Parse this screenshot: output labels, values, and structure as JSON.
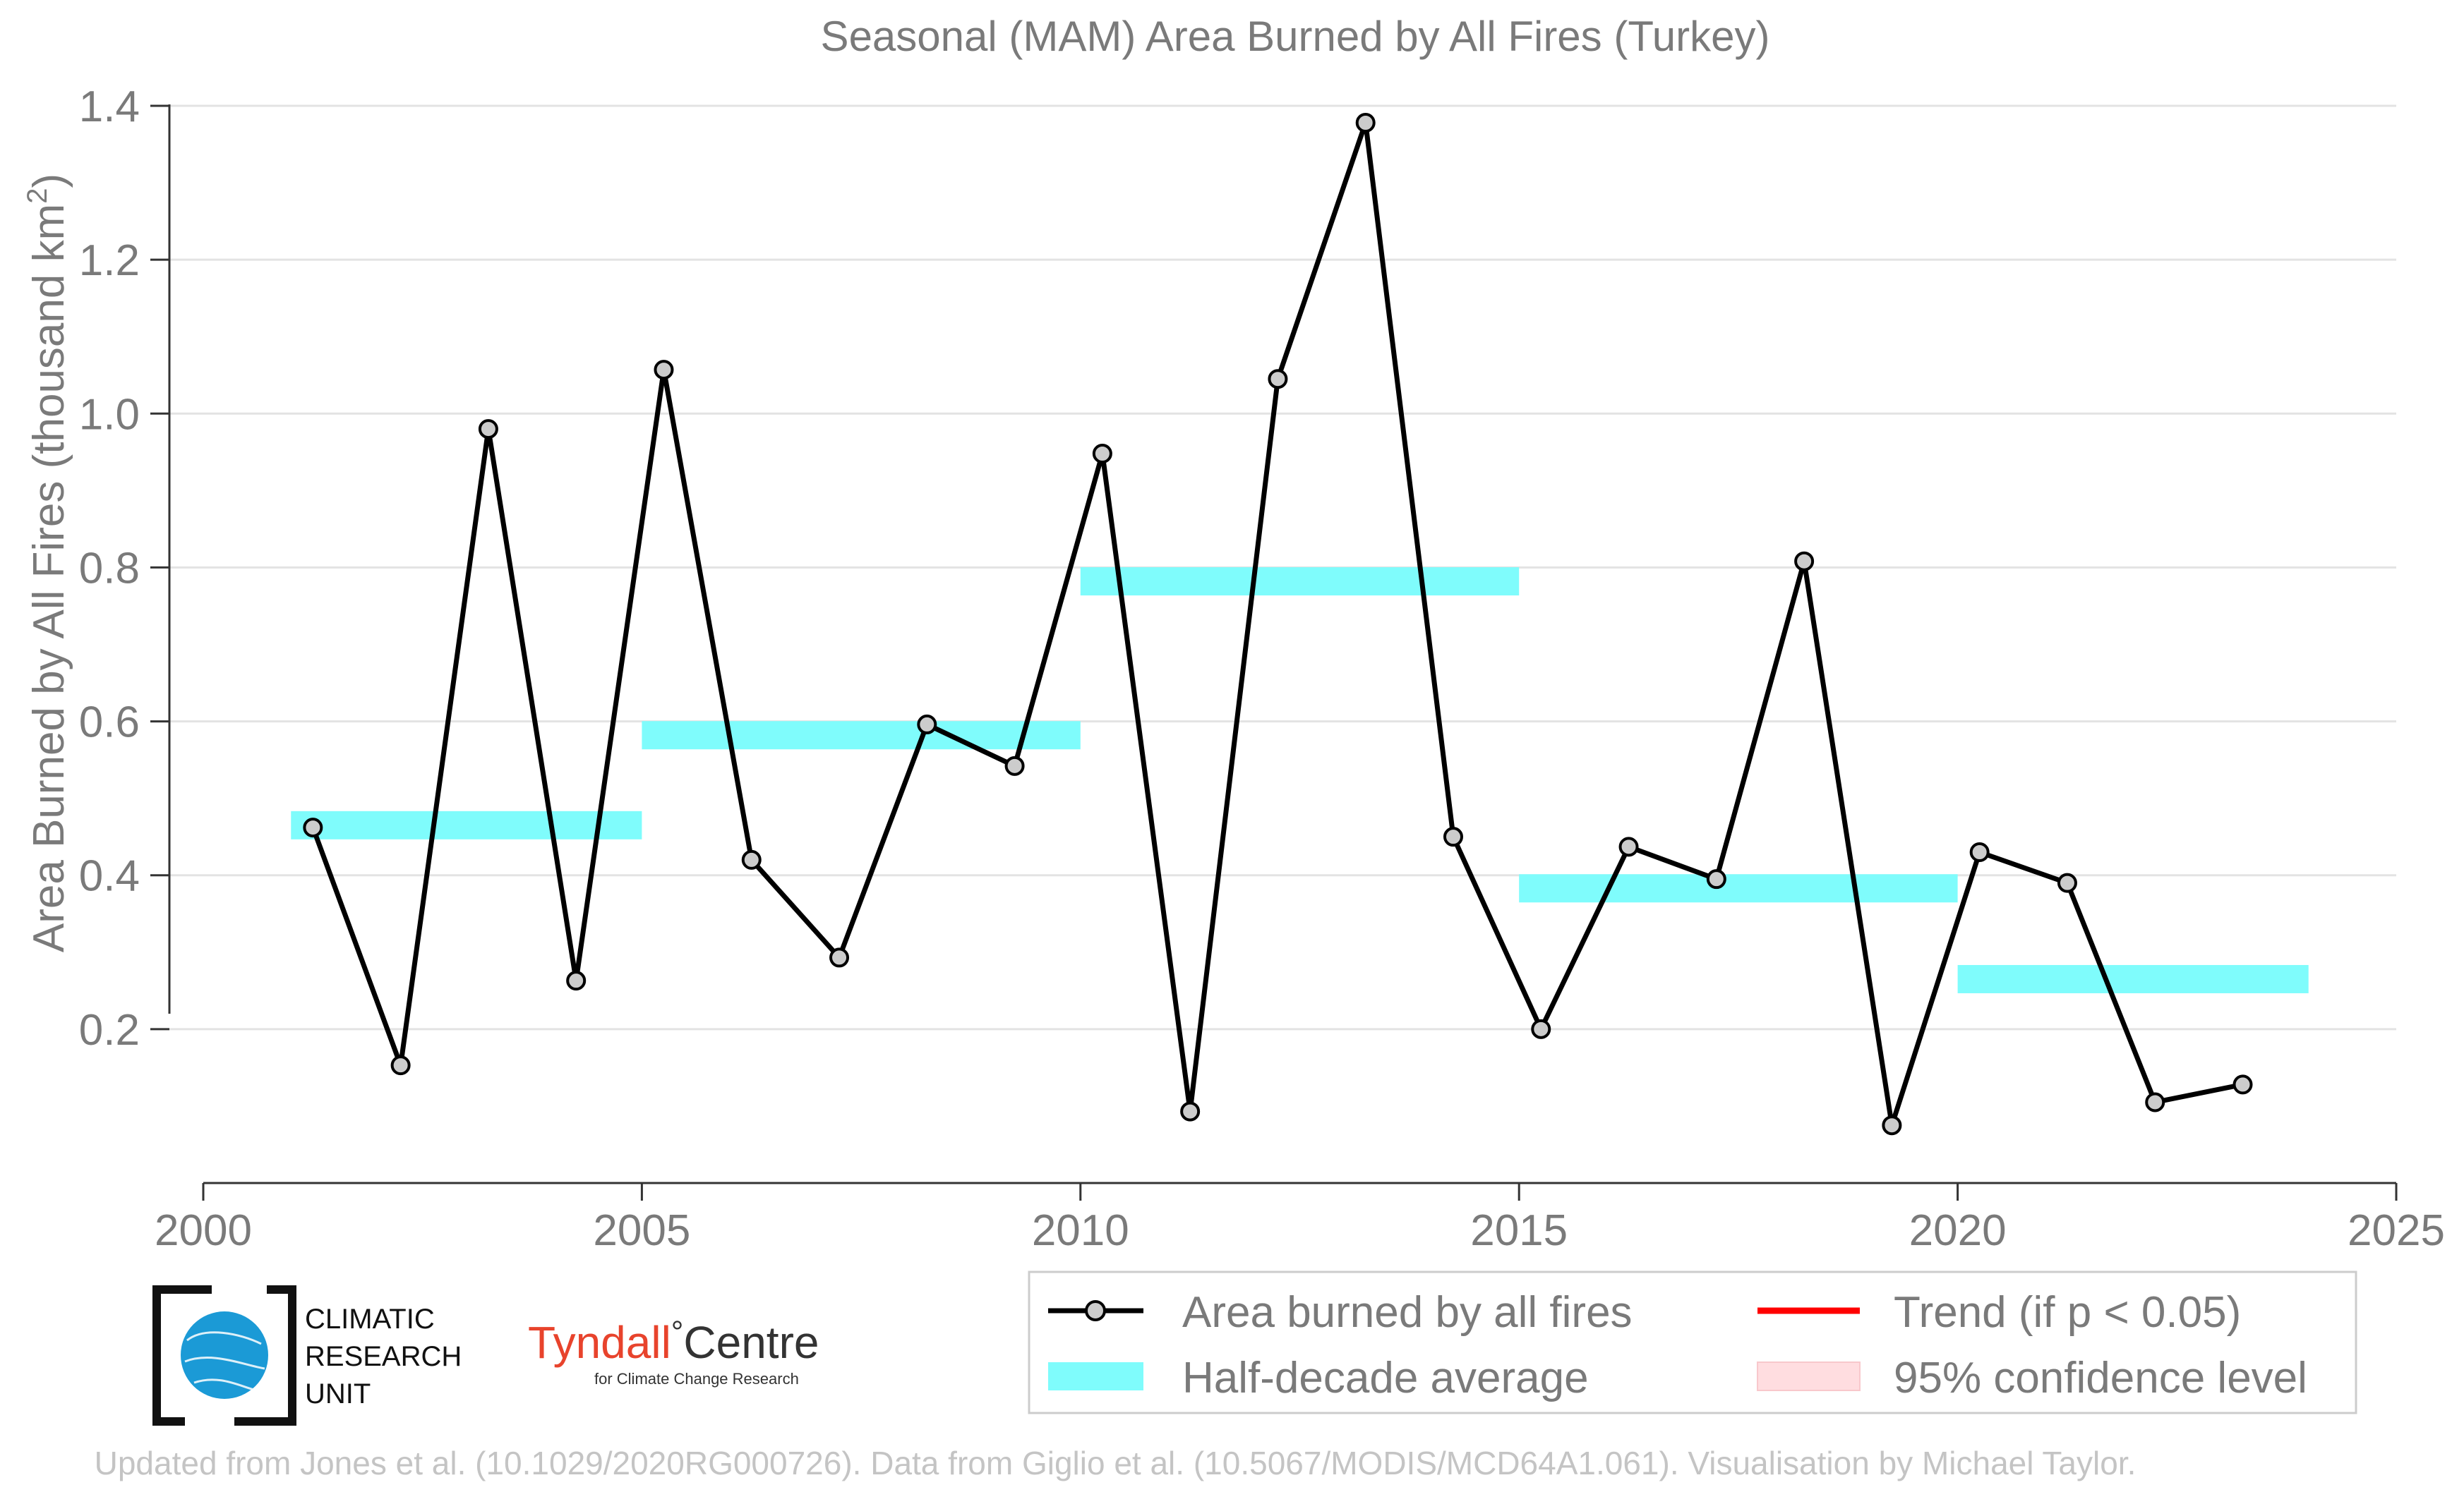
{
  "chart_data": {
    "type": "line",
    "title": "Seasonal (MAM) Area Burned by All Fires (Turkey)",
    "ylabel": "Area Burned by All Fires (thousand km",
    "ylabel_sup": "2",
    "ylabel_close": ")",
    "xlim": [
      2000,
      2025
    ],
    "ylim": [
      0,
      1.4
    ],
    "x_ticks": [
      2000,
      2005,
      2010,
      2015,
      2020,
      2025
    ],
    "y_ticks": [
      0.2,
      0.4,
      0.6,
      0.8,
      1.0,
      1.2,
      1.4
    ],
    "y_tick_labels": [
      "0.2",
      "0.4",
      "0.6",
      "0.8",
      "1.0",
      "1.2",
      "1.4"
    ],
    "grid": "horizontal",
    "series": [
      {
        "name": "Area burned by all fires",
        "color": "#000000",
        "marker_fill": "#cccccc",
        "x": [
          2001.25,
          2002.25,
          2003.25,
          2004.25,
          2005.25,
          2006.25,
          2007.25,
          2008.25,
          2009.25,
          2010.25,
          2011.25,
          2012.25,
          2013.25,
          2014.25,
          2015.25,
          2016.25,
          2017.25,
          2018.25,
          2019.25,
          2020.25,
          2021.25,
          2022.25,
          2023.25
        ],
        "values": [
          0.462,
          0.153,
          0.98,
          0.263,
          1.057,
          0.42,
          0.293,
          0.596,
          0.542,
          0.948,
          0.093,
          1.045,
          1.378,
          0.45,
          0.2,
          0.437,
          0.395,
          0.808,
          0.075,
          0.43,
          0.39,
          0.105,
          0.128
        ]
      }
    ],
    "half_decade_average": {
      "name": "Half-decade average",
      "color": "#7ffcfc",
      "periods": [
        {
          "start": 2001,
          "end": 2005,
          "value": 0.465
        },
        {
          "start": 2005,
          "end": 2010,
          "value": 0.582
        },
        {
          "start": 2010,
          "end": 2015,
          "value": 0.782
        },
        {
          "start": 2015,
          "end": 2020,
          "value": 0.383
        },
        {
          "start": 2020,
          "end": 2024,
          "value": 0.265
        }
      ]
    },
    "legend": {
      "placement": "bottom-right",
      "items": [
        {
          "label": "Area burned by all fires",
          "kind": "line-marker",
          "color": "#000000"
        },
        {
          "label": "Trend (if p < 0.05)",
          "kind": "line",
          "color": "#ff0000"
        },
        {
          "label": "Half-decade average",
          "kind": "band",
          "color": "#7ffcfc"
        },
        {
          "label": "95% confidence level",
          "kind": "band",
          "color": "#ffdde0"
        }
      ]
    }
  },
  "logos": {
    "cru_lines": [
      "CLIMATIC",
      "RESEARCH",
      "UNIT"
    ],
    "cru_globe_color": "#1b9ad6",
    "tyndall_name": "Tyndall",
    "tyndall_degree": "°",
    "tyndall_centre": "Centre",
    "tyndall_sub": "for Climate Change Research"
  },
  "credit": "Updated from Jones et al. (10.1029/2020RG000726). Data from Giglio et al. (10.5067/MODIS/MCD64A1.061). Visualisation by Michael Taylor."
}
